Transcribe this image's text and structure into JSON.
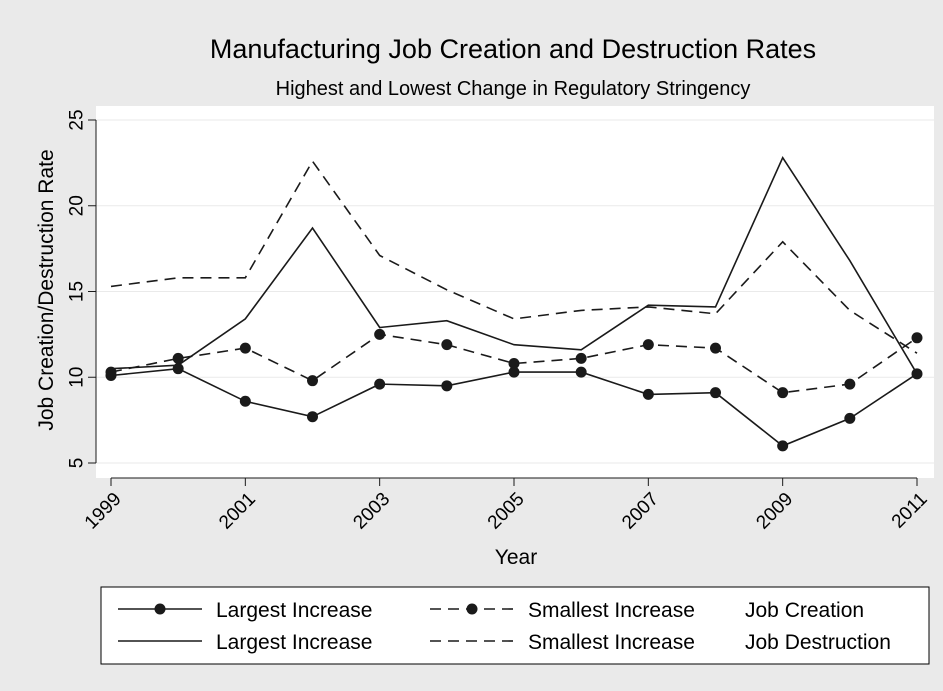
{
  "chart_data": {
    "type": "line",
    "title": "Manufacturing Job Creation and Destruction Rates",
    "subtitle": "Highest and Lowest Change in Regulatory Stringency",
    "xlabel": "Year",
    "ylabel": "Job Creation/Destruction Rate",
    "xlim": [
      1999,
      2011
    ],
    "ylim": [
      5,
      25
    ],
    "x_ticks": [
      1999,
      2001,
      2003,
      2005,
      2007,
      2009,
      2011
    ],
    "y_ticks": [
      5,
      10,
      15,
      20,
      25
    ],
    "grid": true,
    "legend_position": "bottom",
    "x": [
      1999,
      2000,
      2001,
      2002,
      2003,
      2004,
      2005,
      2006,
      2007,
      2008,
      2009,
      2010,
      2011
    ],
    "series": [
      {
        "name": "Largest Increase",
        "group": "Job Creation",
        "style": "solid-markers",
        "values": [
          10.1,
          10.5,
          8.6,
          7.7,
          9.6,
          9.5,
          10.3,
          10.3,
          9.0,
          9.1,
          6.0,
          7.6,
          10.2
        ]
      },
      {
        "name": "Smallest Increase",
        "group": "Job Creation",
        "style": "dashed-markers",
        "values": [
          10.3,
          11.1,
          11.7,
          9.8,
          12.5,
          11.9,
          10.8,
          11.1,
          11.9,
          11.7,
          9.1,
          9.6,
          12.3
        ]
      },
      {
        "name": "Largest Increase",
        "group": "Job Destruction",
        "style": "solid",
        "values": [
          10.5,
          10.7,
          13.4,
          18.7,
          12.9,
          13.3,
          11.9,
          11.6,
          14.2,
          14.1,
          22.8,
          16.8,
          10.2
        ]
      },
      {
        "name": "Smallest Increase",
        "group": "Job Destruction",
        "style": "dashed",
        "values": [
          15.3,
          15.8,
          15.8,
          22.6,
          17.1,
          15.1,
          13.4,
          13.9,
          14.1,
          13.7,
          17.9,
          13.9,
          11.4
        ]
      }
    ],
    "legend": {
      "rows": [
        {
          "solid_label": "Largest Increase",
          "dashed_label": "Smallest Increase",
          "group_label": "Job Creation",
          "markers": true
        },
        {
          "solid_label": "Largest Increase",
          "dashed_label": "Smallest Increase",
          "group_label": "Job Destruction",
          "markers": false
        }
      ]
    },
    "colors": {
      "background": "#eaeaea",
      "plot_background": "#ffffff",
      "line": "#1a1a1a",
      "grid": "#eaeaea"
    }
  }
}
